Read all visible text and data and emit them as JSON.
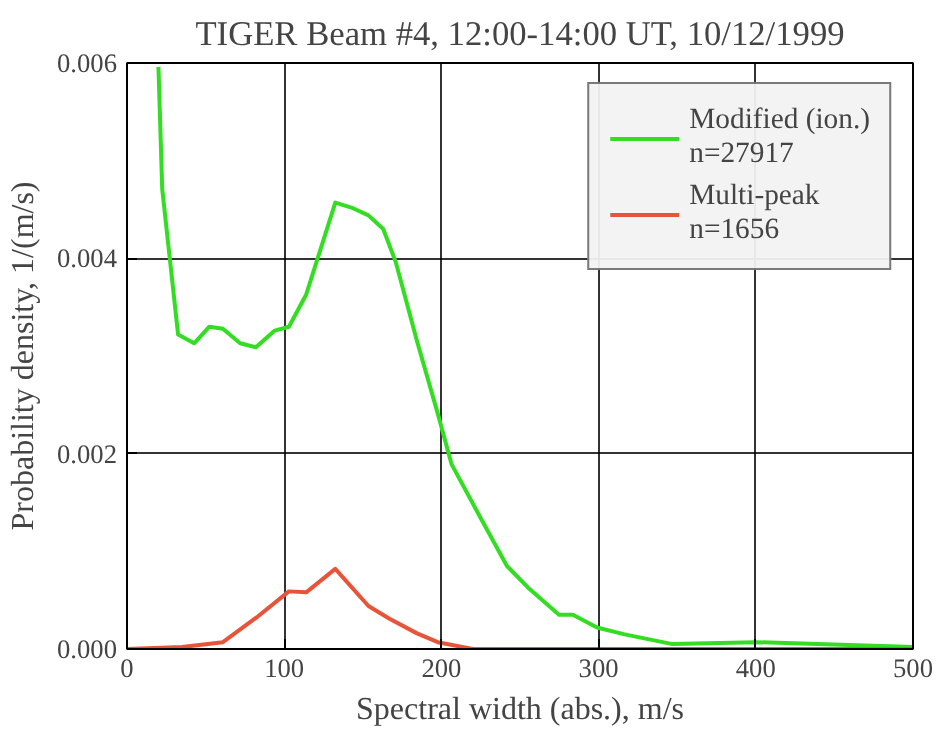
{
  "chart_data": {
    "type": "line",
    "title": "TIGER Beam #4, 12:00-14:00 UT, 10/12/1999",
    "xlabel": "Spectral width (abs.), m/s",
    "ylabel": "Probability density, 1/(m/s)",
    "xlim": [
      0,
      500
    ],
    "xticks": [
      0,
      100,
      200,
      300,
      400,
      500
    ],
    "ylim": [
      0,
      0.006
    ],
    "yticks": [
      {
        "value": 0,
        "label": "0.000"
      },
      {
        "value": 0.002,
        "label": "0.002"
      },
      {
        "value": 0.004,
        "label": "0.004"
      },
      {
        "value": 0.006,
        "label": "0.006"
      }
    ],
    "grid": true,
    "legend": "top right",
    "marker": "none",
    "line_style": "solid",
    "series": [
      {
        "name": "Modified (ion.)\nn=27917",
        "color": "#33dd22",
        "x": [
          20,
          22.4,
          32.5,
          42.7,
          52.4,
          61,
          72,
          82,
          94,
          103,
          114,
          132.5,
          142.7,
          153.6,
          163,
          171,
          184.5,
          197.7,
          206.5,
          224,
          241.7,
          255,
          274.8,
          283.6,
          299,
          316.6,
          347,
          400,
          500
        ],
        "values": [
          0.00596,
          0.00471,
          0.00322,
          0.00313,
          0.0033,
          0.00328,
          0.00313,
          0.00309,
          0.00326,
          0.0033,
          0.00363,
          0.00457,
          0.00452,
          0.00444,
          0.0043,
          0.00396,
          0.00315,
          0.00241,
          0.00189,
          0.00137,
          0.00085,
          0.00063,
          0.00035,
          0.00035,
          0.00022,
          0.00015,
          5e-05,
          7e-05,
          2e-05
        ]
      },
      {
        "name": "Multi-peak\nn=1656",
        "color": "#e8543a",
        "x": [
          0,
          35,
          61,
          83,
          103,
          114,
          132.5,
          153.6,
          167,
          184.5,
          197.7,
          220,
          500
        ],
        "values": [
          0,
          2e-05,
          7e-05,
          0.00033,
          0.00059,
          0.00058,
          0.00082,
          0.00044,
          0.00031,
          0.00016,
          7e-05,
          0,
          0
        ]
      }
    ]
  }
}
